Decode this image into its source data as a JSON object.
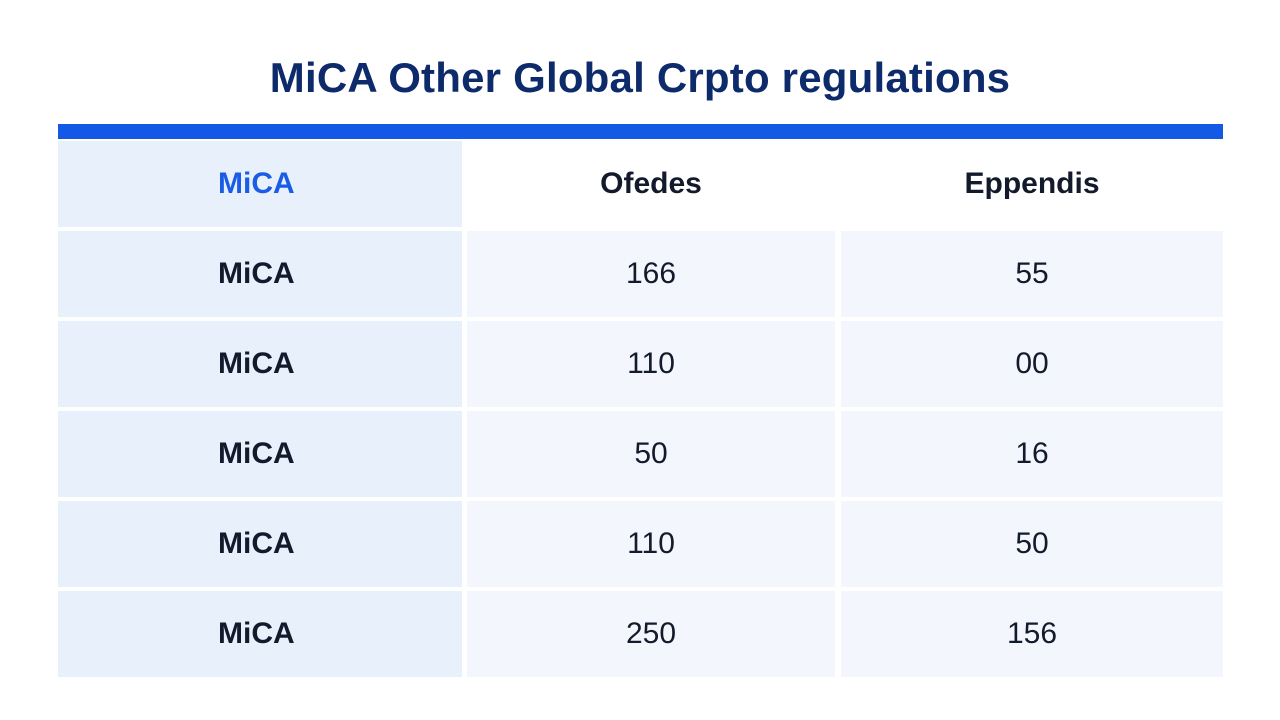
{
  "title": "MiCA Other Global Crpto regulations",
  "colors": {
    "accent": "#1459e6",
    "title": "#0d2a6b",
    "header_first": "#1a5ce6",
    "row_first_bg": "#e8f0fc",
    "row_bg": "#f3f6fc"
  },
  "table": {
    "headers": [
      "MiCA",
      "Ofedes",
      "Eppendis"
    ],
    "rows": [
      [
        "MiCA",
        "166",
        "55"
      ],
      [
        "MiCA",
        "110",
        "00"
      ],
      [
        "MiCA",
        "50",
        "16"
      ],
      [
        "MiCA",
        "110",
        "50"
      ],
      [
        "MiCA",
        "250",
        "156"
      ]
    ]
  }
}
